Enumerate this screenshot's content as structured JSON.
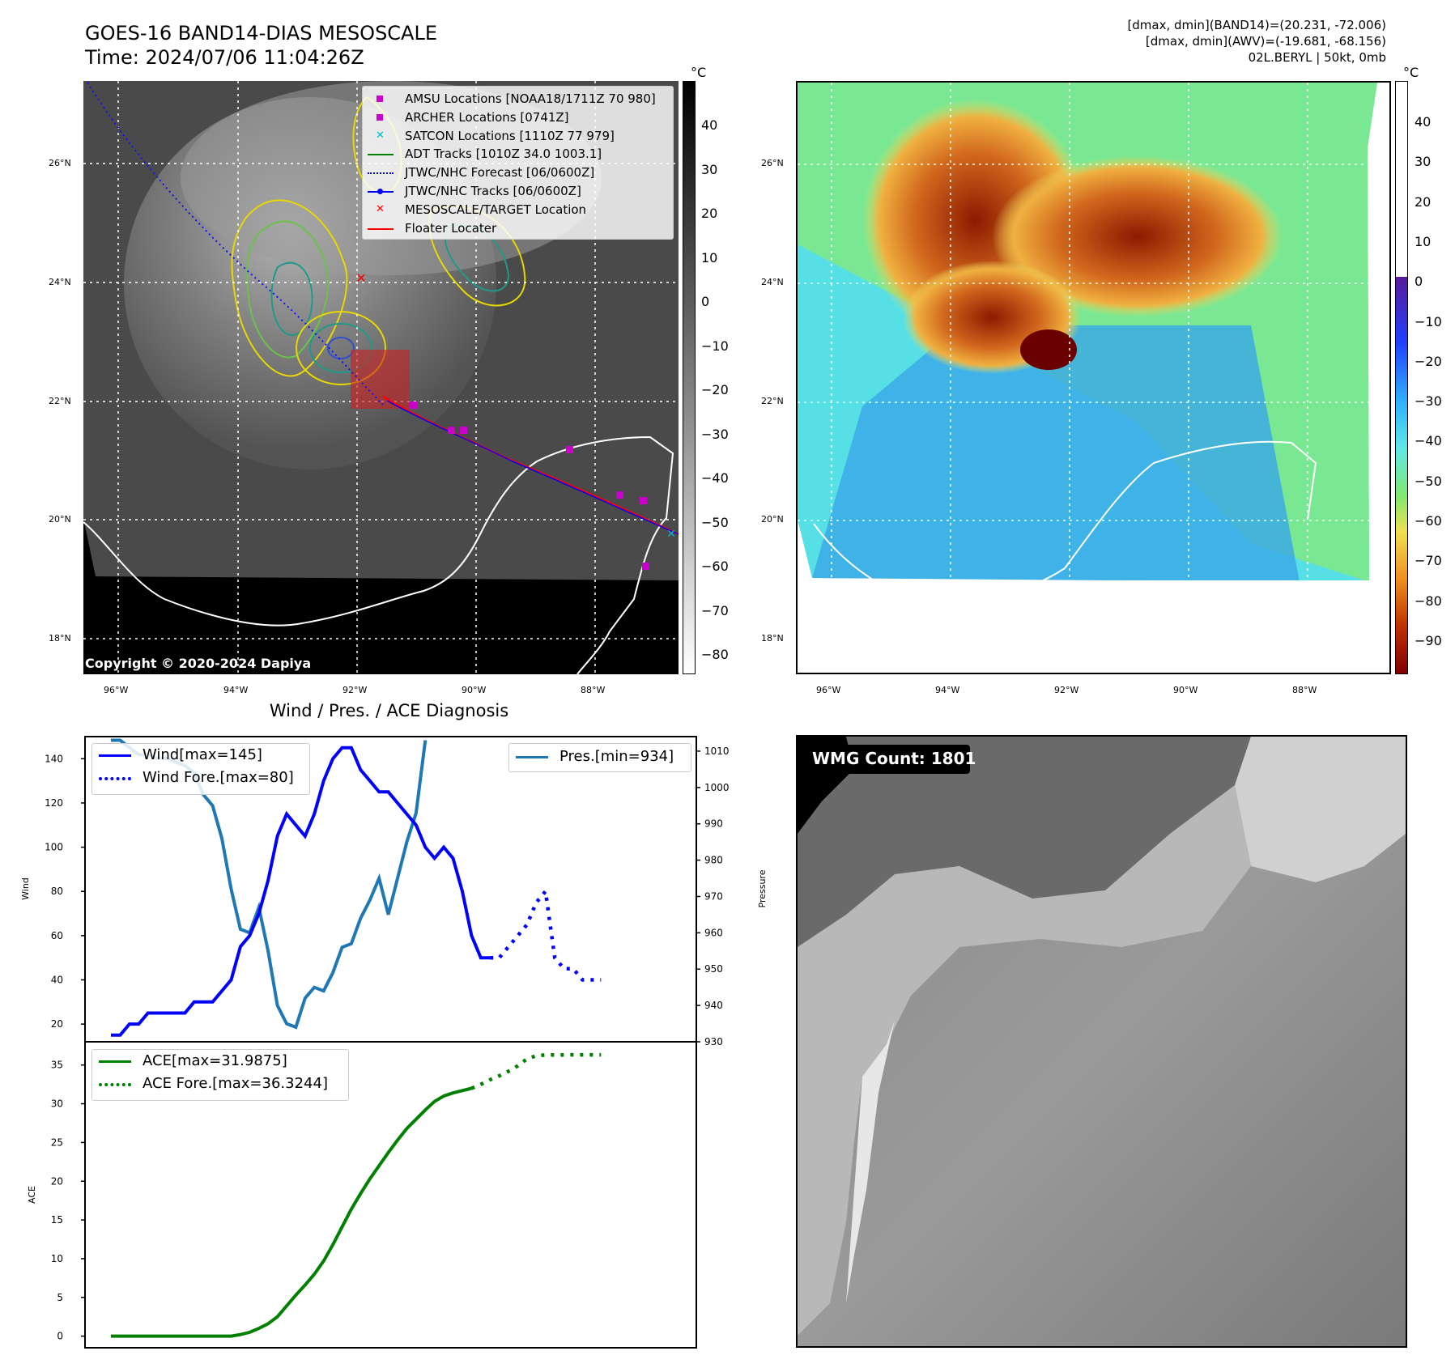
{
  "header": {
    "title_line1": "GOES-16 BAND14-DIAS MESOSCALE",
    "title_line2": "Time: 2024/07/06 11:04:26Z",
    "info_line1": "[dmax, dmin](BAND14)=(20.231, -72.006)",
    "info_line2": "[dmax, dmin](AWV)=(-19.681, -68.156)",
    "info_line3": "02L.BERYL | 50kt, 0mb"
  },
  "maps": {
    "lat_labels": [
      "26°N",
      "24°N",
      "22°N",
      "20°N",
      "18°N"
    ],
    "lon_labels": [
      "96°W",
      "94°W",
      "92°W",
      "90°W",
      "88°W"
    ],
    "copyright": "Copyright © 2020-2024 Dapiya",
    "cbar_unit": "°C",
    "ir_cbar_ticks": [
      "40",
      "30",
      "20",
      "10",
      "0",
      "−10",
      "−20",
      "−30",
      "−40",
      "−50",
      "−60",
      "−70",
      "−80"
    ],
    "awv_cbar_ticks": [
      "40",
      "30",
      "20",
      "10",
      "0",
      "−10",
      "−20",
      "−30",
      "−40",
      "−50",
      "−60",
      "−70",
      "−80",
      "−90"
    ],
    "legend": [
      {
        "label": "AMSU Locations [NOAA18/1711Z 70 980]",
        "color": "#cc00cc",
        "icon": "square-marker"
      },
      {
        "label": "ARCHER Locations [0741Z]",
        "color": "#cc00cc",
        "icon": "square-marker"
      },
      {
        "label": "SATCON Locations [1110Z 77 979]",
        "color": "#00bbbb",
        "icon": "x-marker"
      },
      {
        "label": "ADT Tracks [1010Z 34.0 1003.1]",
        "color": "#008000",
        "icon": "line"
      },
      {
        "label": "JTWC/NHC Forecast [06/0600Z]",
        "color": "#0000ff",
        "icon": "dotted-line"
      },
      {
        "label": "JTWC/NHC Tracks [06/0600Z]",
        "color": "#0000ff",
        "icon": "line-dot"
      },
      {
        "label": "MESOSCALE/TARGET Location",
        "color": "#ff0000",
        "icon": "x-marker"
      },
      {
        "label": "Floater Locater",
        "color": "#ff0000",
        "icon": "line"
      }
    ]
  },
  "diag": {
    "title": "Wind / Pres. / ACE Diagnosis",
    "wind_ylabel": "Wind",
    "pres_ylabel": "Pressure",
    "ace_ylabel": "ACE",
    "legend_wind": "Wind[max=145]",
    "legend_wind_fore": "Wind Fore.[max=80]",
    "legend_pres": "Pres.[min=934]",
    "legend_ace": "ACE[max=31.9875]",
    "legend_ace_fore": "ACE Fore.[max=36.3244]",
    "wmg": "WMG Count: 1801"
  },
  "chart_data": [
    {
      "type": "line",
      "title": "Wind / Pres. / ACE Diagnosis",
      "ylabel": "Wind",
      "y2label": "Pressure",
      "ylim": [
        12,
        150
      ],
      "y2lim": [
        930,
        1014
      ],
      "yticks": [
        20,
        40,
        60,
        80,
        100,
        120,
        140
      ],
      "y2ticks": [
        930,
        940,
        950,
        960,
        970,
        980,
        990,
        1000,
        1010
      ],
      "series": [
        {
          "name": "Wind[max=145]",
          "color": "#0000ff",
          "style": "solid",
          "axis": "left",
          "values": [
            15,
            15,
            20,
            20,
            25,
            25,
            25,
            25,
            25,
            30,
            30,
            30,
            35,
            40,
            55,
            60,
            70,
            85,
            105,
            115,
            110,
            105,
            115,
            130,
            140,
            145,
            145,
            135,
            130,
            125,
            125,
            120,
            115,
            110,
            100,
            95,
            100,
            95,
            80,
            60,
            50,
            50
          ]
        },
        {
          "name": "Wind Fore.[max=80]",
          "color": "#0000ff",
          "style": "dotted",
          "axis": "left",
          "offset": 41,
          "values": [
            50,
            50,
            55,
            60,
            65,
            75,
            80,
            50,
            45,
            45,
            40,
            40,
            40
          ]
        },
        {
          "name": "Pres.[min=934]",
          "color": "#1f77b4",
          "style": "solid",
          "axis": "right",
          "values": [
            1013,
            1013,
            1011,
            1009,
            1009,
            1008,
            1008,
            1007,
            1006,
            1004,
            998,
            995,
            986,
            972,
            961,
            960,
            967,
            955,
            940,
            935,
            934,
            942,
            945,
            944,
            949,
            956,
            957,
            964,
            969,
            975,
            965,
            975,
            985,
            993,
            1013
          ]
        }
      ]
    },
    {
      "type": "line",
      "ylabel": "ACE",
      "ylim": [
        -1.5,
        38
      ],
      "yticks": [
        0,
        5,
        10,
        15,
        20,
        25,
        30,
        35
      ],
      "series": [
        {
          "name": "ACE[max=31.9875]",
          "color": "#008000",
          "style": "solid",
          "values": [
            0,
            0,
            0,
            0,
            0,
            0,
            0,
            0,
            0,
            0,
            0,
            0,
            0,
            0,
            0.2,
            0.5,
            1.0,
            1.6,
            2.5,
            3.9,
            5.3,
            6.6,
            8.0,
            9.7,
            11.8,
            14.1,
            16.4,
            18.4,
            20.3,
            22.0,
            23.7,
            25.3,
            26.8,
            28.0,
            29.2,
            30.3,
            31.0,
            31.4,
            31.7,
            31.99
          ]
        },
        {
          "name": "ACE Fore.[max=36.3244]",
          "color": "#008000",
          "style": "dotted",
          "offset": 39,
          "values": [
            31.99,
            32.5,
            33.1,
            33.6,
            34.2,
            34.9,
            35.8,
            36.2,
            36.3,
            36.3,
            36.3,
            36.32,
            36.32,
            36.32,
            36.32
          ]
        }
      ]
    }
  ]
}
